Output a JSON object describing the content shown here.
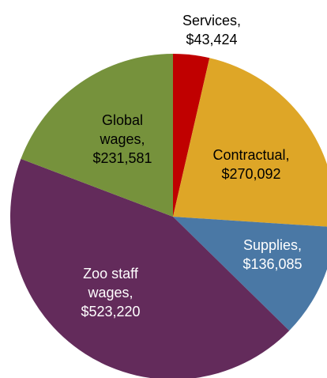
{
  "chart_data": {
    "type": "pie",
    "categories": [
      "Services,",
      "Contractual,",
      "Supplies,",
      "Zoo staff wages,",
      "Global wages,"
    ],
    "values": [
      43424,
      270092,
      136085,
      523220,
      231581
    ],
    "value_labels": [
      "$43,424",
      "$270,092",
      "$136,085",
      "$523,220",
      "$231,581"
    ],
    "colors": [
      "#c00000",
      "#dea627",
      "#4a78a5",
      "#632b5b",
      "#76923c"
    ]
  }
}
